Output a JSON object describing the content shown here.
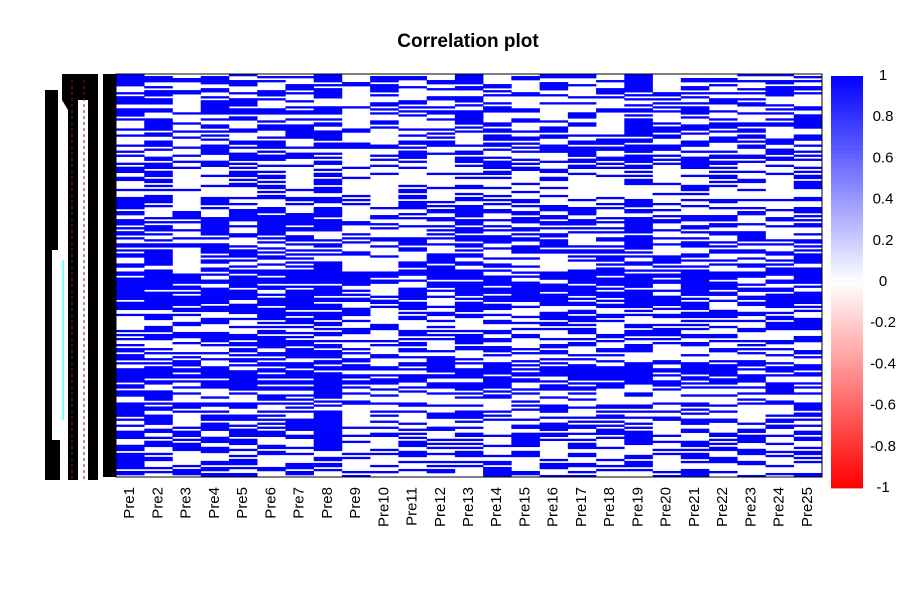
{
  "chart_data": {
    "type": "heatmap",
    "title": "Correlation plot",
    "xlabel": "",
    "ylabel": "",
    "columns": [
      "Pre1",
      "Pre2",
      "Pre3",
      "Pre4",
      "Pre5",
      "Pre6",
      "Pre7",
      "Pre8",
      "Pre9",
      "Pre10",
      "Pre11",
      "Pre12",
      "Pre13",
      "Pre14",
      "Pre15",
      "Pre16",
      "Pre17",
      "Pre18",
      "Pre19",
      "Pre20",
      "Pre21",
      "Pre22",
      "Pre23",
      "Pre24",
      "Pre25"
    ],
    "row_count": 200,
    "value_range": [
      -1,
      1
    ],
    "colorbar": {
      "ticks": [
        1,
        0.8,
        0.6,
        0.4,
        0.2,
        0,
        -0.2,
        -0.4,
        -0.6,
        -0.8,
        -1
      ],
      "tick_labels": [
        "1",
        "0.8",
        "0.6",
        "0.4",
        "0.2",
        "0",
        "-0.2",
        "-0.4",
        "-0.6",
        "-0.8",
        "-1"
      ],
      "colors": {
        "high": "#0000ff",
        "mid": "#ffffff",
        "low": "#ff0000"
      }
    },
    "column_density": [
      0.55,
      0.6,
      0.35,
      0.55,
      0.5,
      0.55,
      0.5,
      0.65,
      0.3,
      0.3,
      0.4,
      0.45,
      0.6,
      0.45,
      0.35,
      0.45,
      0.45,
      0.4,
      0.6,
      0.3,
      0.45,
      0.45,
      0.35,
      0.4,
      0.45
    ],
    "notes": "Cell values are mostly near 0 (white) or strongly positive (blue); individual cell values are not legible. Row labels are overplotted and illegible."
  }
}
